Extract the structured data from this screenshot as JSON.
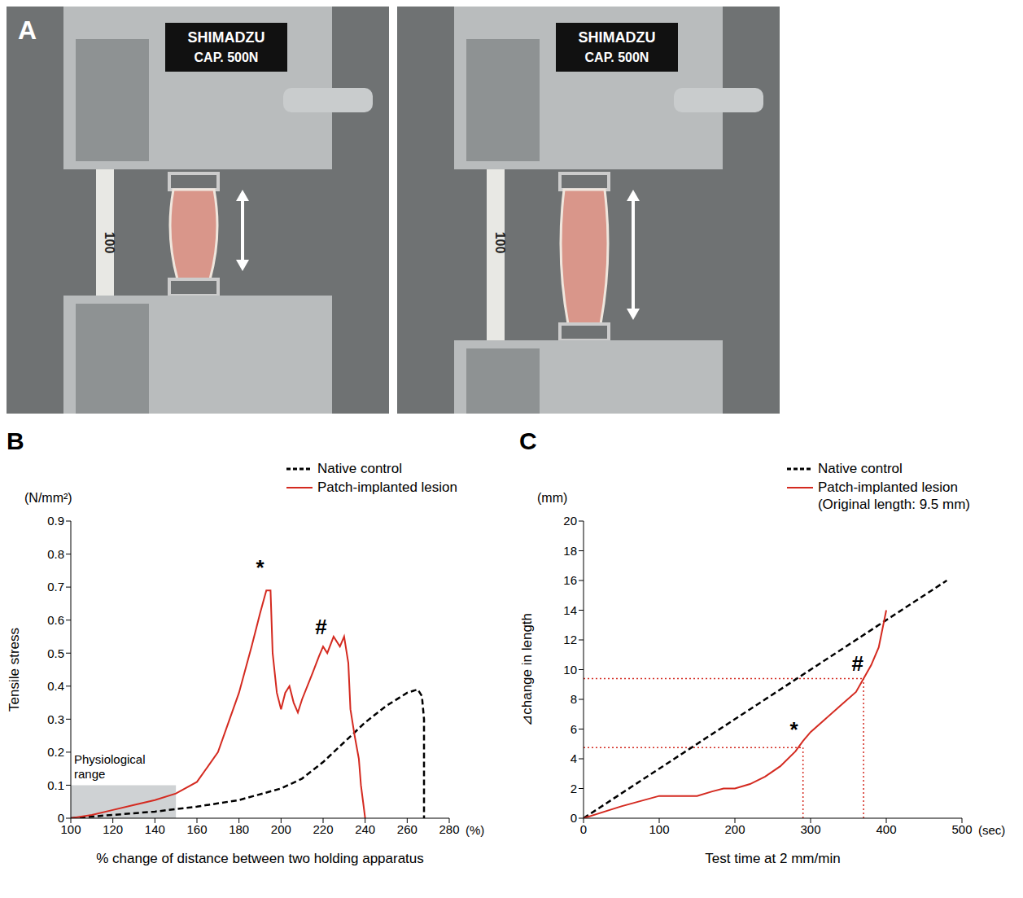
{
  "panel_a": {
    "label": "A",
    "photos": [
      {
        "brand": "SHIMADZU",
        "capacity": "CAP. 500N",
        "ruler": "100"
      },
      {
        "brand": "SHIMADZU",
        "capacity": "CAP. 500N",
        "ruler": "100"
      }
    ]
  },
  "chart_data": [
    {
      "panel": "B",
      "type": "line",
      "y_unit": "(N/mm²)",
      "x_unit": "(%)",
      "x_label": "% change of distance between two holding apparatus",
      "y_label": "Tensile stress",
      "xlim": [
        100,
        280
      ],
      "xticks": [
        100,
        120,
        140,
        160,
        180,
        200,
        220,
        240,
        260,
        280
      ],
      "ylim": [
        0,
        0.9
      ],
      "yticks": [
        0,
        0.1,
        0.2,
        0.3,
        0.4,
        0.5,
        0.6,
        0.7,
        0.8,
        0.9
      ],
      "grid": false,
      "legend": "upper right",
      "series": [
        {
          "name": "Native control",
          "color": "#000000",
          "line_style": "dashed",
          "x": [
            100,
            120,
            140,
            160,
            180,
            200,
            210,
            220,
            230,
            240,
            250,
            260,
            265,
            267,
            268,
            268
          ],
          "values": [
            0,
            0.01,
            0.02,
            0.035,
            0.055,
            0.09,
            0.12,
            0.17,
            0.23,
            0.29,
            0.34,
            0.38,
            0.39,
            0.37,
            0.3,
            0
          ]
        },
        {
          "name": "Patch-implanted lesion",
          "color": "#d42a20",
          "line_style": "solid",
          "x": [
            100,
            110,
            120,
            130,
            140,
            150,
            160,
            170,
            180,
            186,
            190,
            193,
            195,
            196,
            198,
            200,
            202,
            204,
            206,
            208,
            210,
            215,
            218,
            220,
            222,
            225,
            228,
            230,
            232,
            233,
            235,
            237,
            238,
            239,
            240
          ],
          "values": [
            0,
            0.01,
            0.025,
            0.04,
            0.055,
            0.075,
            0.11,
            0.2,
            0.38,
            0.52,
            0.62,
            0.69,
            0.69,
            0.5,
            0.38,
            0.33,
            0.38,
            0.4,
            0.35,
            0.32,
            0.36,
            0.44,
            0.49,
            0.52,
            0.5,
            0.55,
            0.52,
            0.55,
            0.47,
            0.33,
            0.25,
            0.18,
            0.1,
            0.05,
            0
          ]
        }
      ],
      "shaded_region": {
        "label": "Physiological range",
        "x": [
          100,
          150
        ],
        "y": [
          0,
          0.1
        ]
      },
      "annotations": [
        {
          "text": "*",
          "x": 190,
          "y": 0.76
        },
        {
          "text": "#",
          "x": 219,
          "y": 0.58
        }
      ]
    },
    {
      "panel": "C",
      "type": "line",
      "y_unit": "(mm)",
      "x_unit": "(sec)",
      "x_label": "Test time at 2 mm/min",
      "y_label": "⊿change in length",
      "xlim": [
        0,
        500
      ],
      "xticks": [
        0,
        100,
        200,
        300,
        400,
        500
      ],
      "ylim": [
        0,
        20
      ],
      "yticks": [
        0,
        2,
        4,
        6,
        8,
        10,
        12,
        14,
        16,
        18,
        20
      ],
      "grid": false,
      "legend": "upper right",
      "series": [
        {
          "name": "Native control",
          "color": "#000000",
          "line_style": "dashed",
          "x": [
            0,
            480
          ],
          "values": [
            0,
            16
          ]
        },
        {
          "name": "Patch-implanted lesion",
          "note": "(Original length: 9.5 mm)",
          "color": "#d42a20",
          "line_style": "solid",
          "x": [
            0,
            50,
            100,
            120,
            150,
            170,
            185,
            200,
            220,
            240,
            260,
            280,
            290,
            300,
            320,
            340,
            360,
            370,
            380,
            390,
            400
          ],
          "values": [
            0,
            0.8,
            1.5,
            1.5,
            1.5,
            1.8,
            2.0,
            2.0,
            2.3,
            2.8,
            3.5,
            4.5,
            5.2,
            5.8,
            6.7,
            7.6,
            8.5,
            9.4,
            10.3,
            11.5,
            14
          ]
        }
      ],
      "reference_points": [
        {
          "x": 290,
          "y": 4.75
        },
        {
          "x": 370,
          "y": 9.4
        }
      ],
      "annotations": [
        {
          "text": "*",
          "x": 278,
          "y": 6.0
        },
        {
          "text": "#",
          "x": 362,
          "y": 10.4
        }
      ]
    }
  ]
}
